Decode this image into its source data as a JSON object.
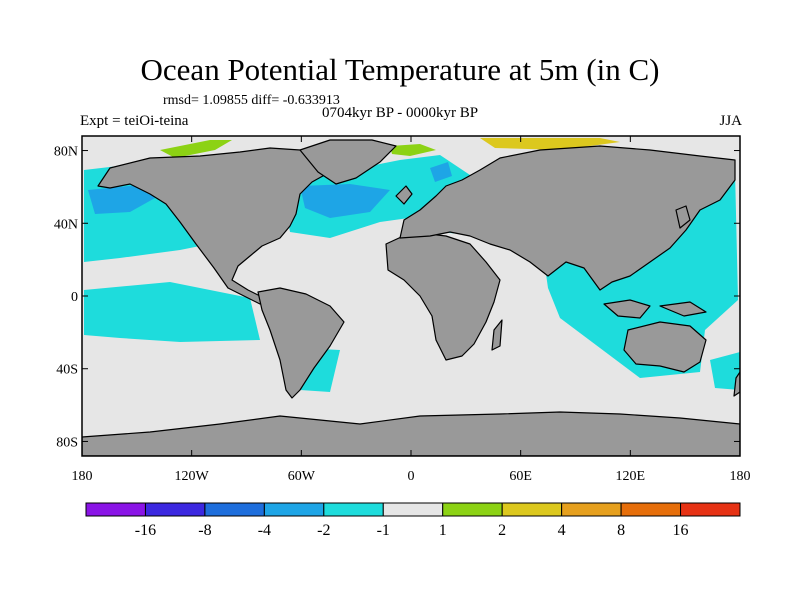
{
  "header": {
    "title": "Ocean Potential Temperature at 5m (in C)",
    "stats": "rmsd= 1.09855 diff= -0.633913",
    "period": "0704kyr BP - 0000kyr BP",
    "experiment": "Expt = teiOi-teina",
    "season": "JJA"
  },
  "axes": {
    "lat_ticks": [
      {
        "lat": 80,
        "label": "80N"
      },
      {
        "lat": 40,
        "label": "40N"
      },
      {
        "lat": 0,
        "label": "0"
      },
      {
        "lat": -40,
        "label": "40S"
      },
      {
        "lat": -80,
        "label": "80S"
      }
    ],
    "lon_ticks": [
      {
        "lon": -180,
        "label": "180"
      },
      {
        "lon": -120,
        "label": "120W"
      },
      {
        "lon": -60,
        "label": "60W"
      },
      {
        "lon": 0,
        "label": "0"
      },
      {
        "lon": 60,
        "label": "60E"
      },
      {
        "lon": 120,
        "label": "120E"
      },
      {
        "lon": 180,
        "label": "180"
      }
    ]
  },
  "colorbar": {
    "colors": [
      "#8a14e6",
      "#3c28e0",
      "#1e6edc",
      "#1ea5e6",
      "#1edcdc",
      "#e6e6e6",
      "#8cd214",
      "#dcc81e",
      "#e6a01e",
      "#e66e0a",
      "#e63214"
    ],
    "labels": [
      "-16",
      "-8",
      "-4",
      "-2",
      "-1",
      "1",
      "2",
      "4",
      "8",
      "16"
    ]
  },
  "palette": {
    "land": "#999999",
    "neutral": "#e6e6e6",
    "cool": "#1edcdc",
    "cooler": "#1ea5e6",
    "warm": "#8cd214",
    "warmer": "#dcc81e"
  }
}
